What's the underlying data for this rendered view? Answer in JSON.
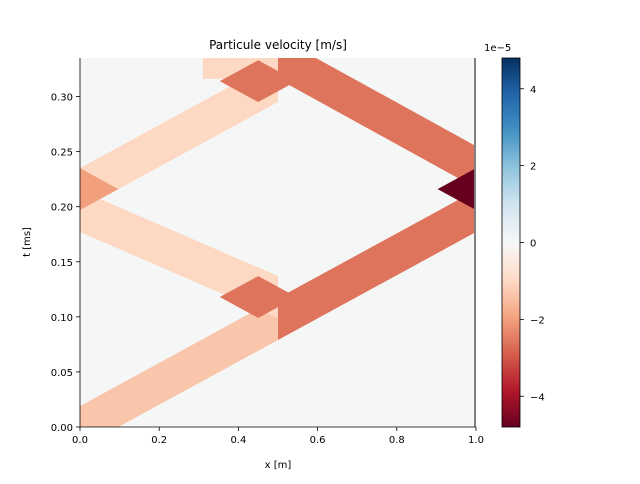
{
  "chart_data": {
    "type": "heatmap",
    "title": "Particule velocity [m/s]",
    "xlabel": "x [m]",
    "ylabel": "t [ms]",
    "xlim": [
      0.0,
      1.0
    ],
    "ylim": [
      0.0,
      0.335
    ],
    "x_ticks": [
      "0.0",
      "0.2",
      "0.4",
      "0.6",
      "0.8",
      "1.0"
    ],
    "y_ticks": [
      "0.00",
      "0.05",
      "0.10",
      "0.15",
      "0.20",
      "0.25",
      "0.30"
    ],
    "colorbar": {
      "colormap": "RdBu",
      "range": [
        -4.8e-05,
        4.8e-05
      ],
      "offset_label": "1e−5",
      "ticks": [
        "4",
        "2",
        "0",
        "−2",
        "−4"
      ],
      "tick_values": [
        4,
        2,
        0,
        -2,
        -4
      ]
    },
    "background_value": 0,
    "boundary_line_x": 1.0,
    "band_half_width_time_ms": 0.019,
    "wave_speed_m_per_ms": 5.1,
    "bands": [
      {
        "name": "",
        "x0": 0.0,
        "t0": 0.0,
        "x1": 0.5,
        "t1": 0.098,
        "value": -1.35e-05
      },
      {
        "name": "",
        "x0": 0.5,
        "t0": 0.098,
        "x1": 1.0,
        "t1": 0.196,
        "value": -2.6e-05
      },
      {
        "name": "",
        "x0": 0.0,
        "t0": 0.196,
        "x1": 0.5,
        "t1": 0.118,
        "value": -1e-05
      },
      {
        "name": "",
        "x0": 0.0,
        "t0": 0.216,
        "x1": 0.5,
        "t1": 0.314,
        "value": -1e-05
      },
      {
        "name": "",
        "x0": 0.5,
        "t0": 0.335,
        "x1": 1.0,
        "t1": 0.236,
        "value": -2.6e-05
      },
      {
        "name": "",
        "x0": 0.31,
        "t0": 0.335,
        "x1": 0.5,
        "t1": 0.335,
        "value": -1e-05
      }
    ],
    "overlaps": [
      {
        "x_center": 0.0,
        "t_center": 0.216,
        "value": -2e-05
      },
      {
        "x_center": 0.45,
        "t_center": 0.118,
        "value": -2.6e-05
      },
      {
        "x_center": 0.45,
        "t_center": 0.314,
        "value": -2.6e-05
      },
      {
        "x_center": 1.0,
        "t_center": 0.216,
        "value": -4.8e-05
      }
    ]
  }
}
